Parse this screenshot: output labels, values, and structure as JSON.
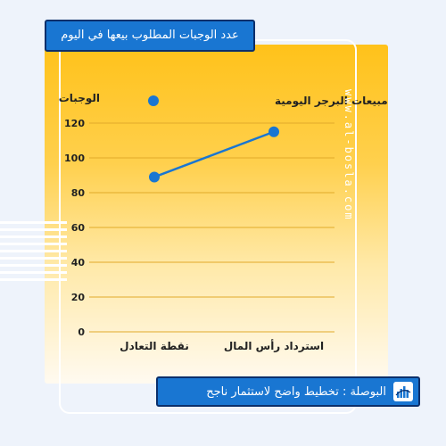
{
  "header": {
    "title": "عدد الوجبات المطلوب بيعها في اليوم"
  },
  "watermark": "www.al-bosla.com",
  "footer": {
    "text": "البوصلة : تخطيط واضح لاستثمار ناجح",
    "logo_icon": "city-chart-logo-icon"
  },
  "colors": {
    "series": "#1976d2",
    "grid": "#e0aa2a",
    "text": "#222222"
  },
  "chart_data": {
    "type": "line",
    "title": "عدد الوجبات المطلوب بيعها في اليوم",
    "ylabel": "الوجبات",
    "xlabel": "",
    "categories": [
      "نقطة التعادل",
      "استرداد رأس المال"
    ],
    "series": [
      {
        "name": "مبيعات البرجر اليومية",
        "values": [
          89,
          115
        ]
      }
    ],
    "ylim": [
      0,
      120
    ],
    "yticks": [
      0,
      20,
      40,
      60,
      80,
      100,
      120
    ],
    "grid": true,
    "legend_position": "top"
  }
}
